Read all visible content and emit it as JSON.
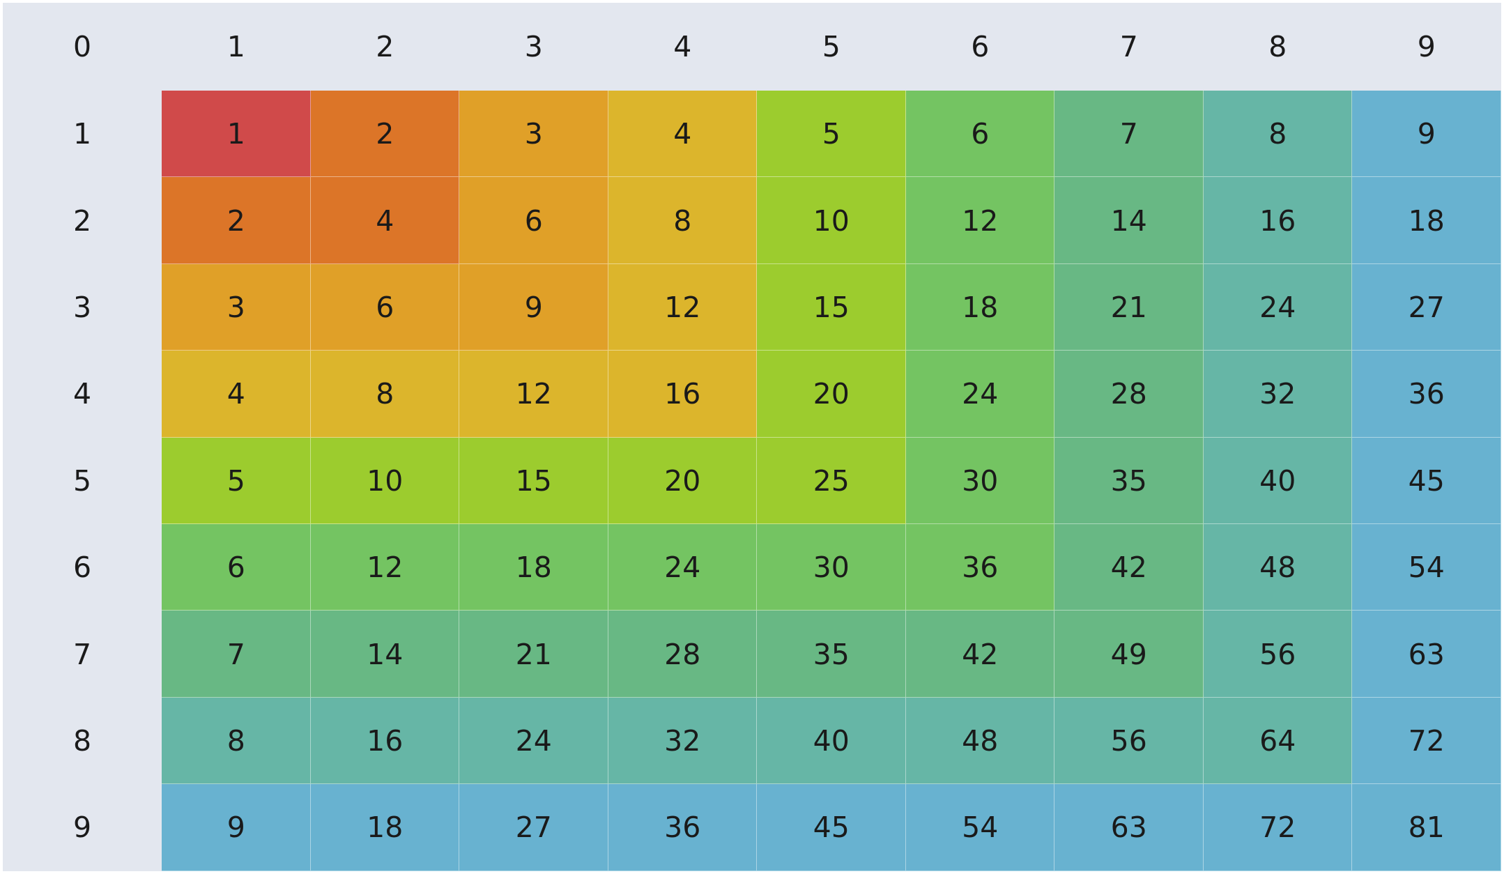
{
  "corner": "0",
  "columns": [
    "1",
    "2",
    "3",
    "4",
    "5",
    "6",
    "7",
    "8",
    "9"
  ],
  "rows": [
    "1",
    "2",
    "3",
    "4",
    "5",
    "6",
    "7",
    "8",
    "9"
  ],
  "cells": [
    [
      "1",
      "2",
      "3",
      "4",
      "5",
      "6",
      "7",
      "8",
      "9"
    ],
    [
      "2",
      "4",
      "6",
      "8",
      "10",
      "12",
      "14",
      "16",
      "18"
    ],
    [
      "3",
      "6",
      "9",
      "12",
      "15",
      "18",
      "21",
      "24",
      "27"
    ],
    [
      "4",
      "8",
      "12",
      "16",
      "20",
      "24",
      "28",
      "32",
      "36"
    ],
    [
      "5",
      "10",
      "15",
      "20",
      "25",
      "30",
      "35",
      "40",
      "45"
    ],
    [
      "6",
      "12",
      "18",
      "24",
      "30",
      "36",
      "42",
      "48",
      "54"
    ],
    [
      "7",
      "14",
      "21",
      "28",
      "35",
      "42",
      "49",
      "56",
      "63"
    ],
    [
      "8",
      "16",
      "24",
      "32",
      "40",
      "48",
      "56",
      "64",
      "72"
    ],
    [
      "9",
      "18",
      "27",
      "36",
      "45",
      "54",
      "63",
      "72",
      "81"
    ]
  ],
  "colors": {
    "header_bg": "#e3e7ef",
    "level_1": "#d04a4a",
    "level_2": "#dc7528",
    "level_3": "#e0a028",
    "level_4": "#dcb52c",
    "level_5": "#9ccc2e",
    "level_6": "#74c462",
    "level_7": "#68b884",
    "level_8": "#66b6a6",
    "level_9": "#68b2d0"
  }
}
